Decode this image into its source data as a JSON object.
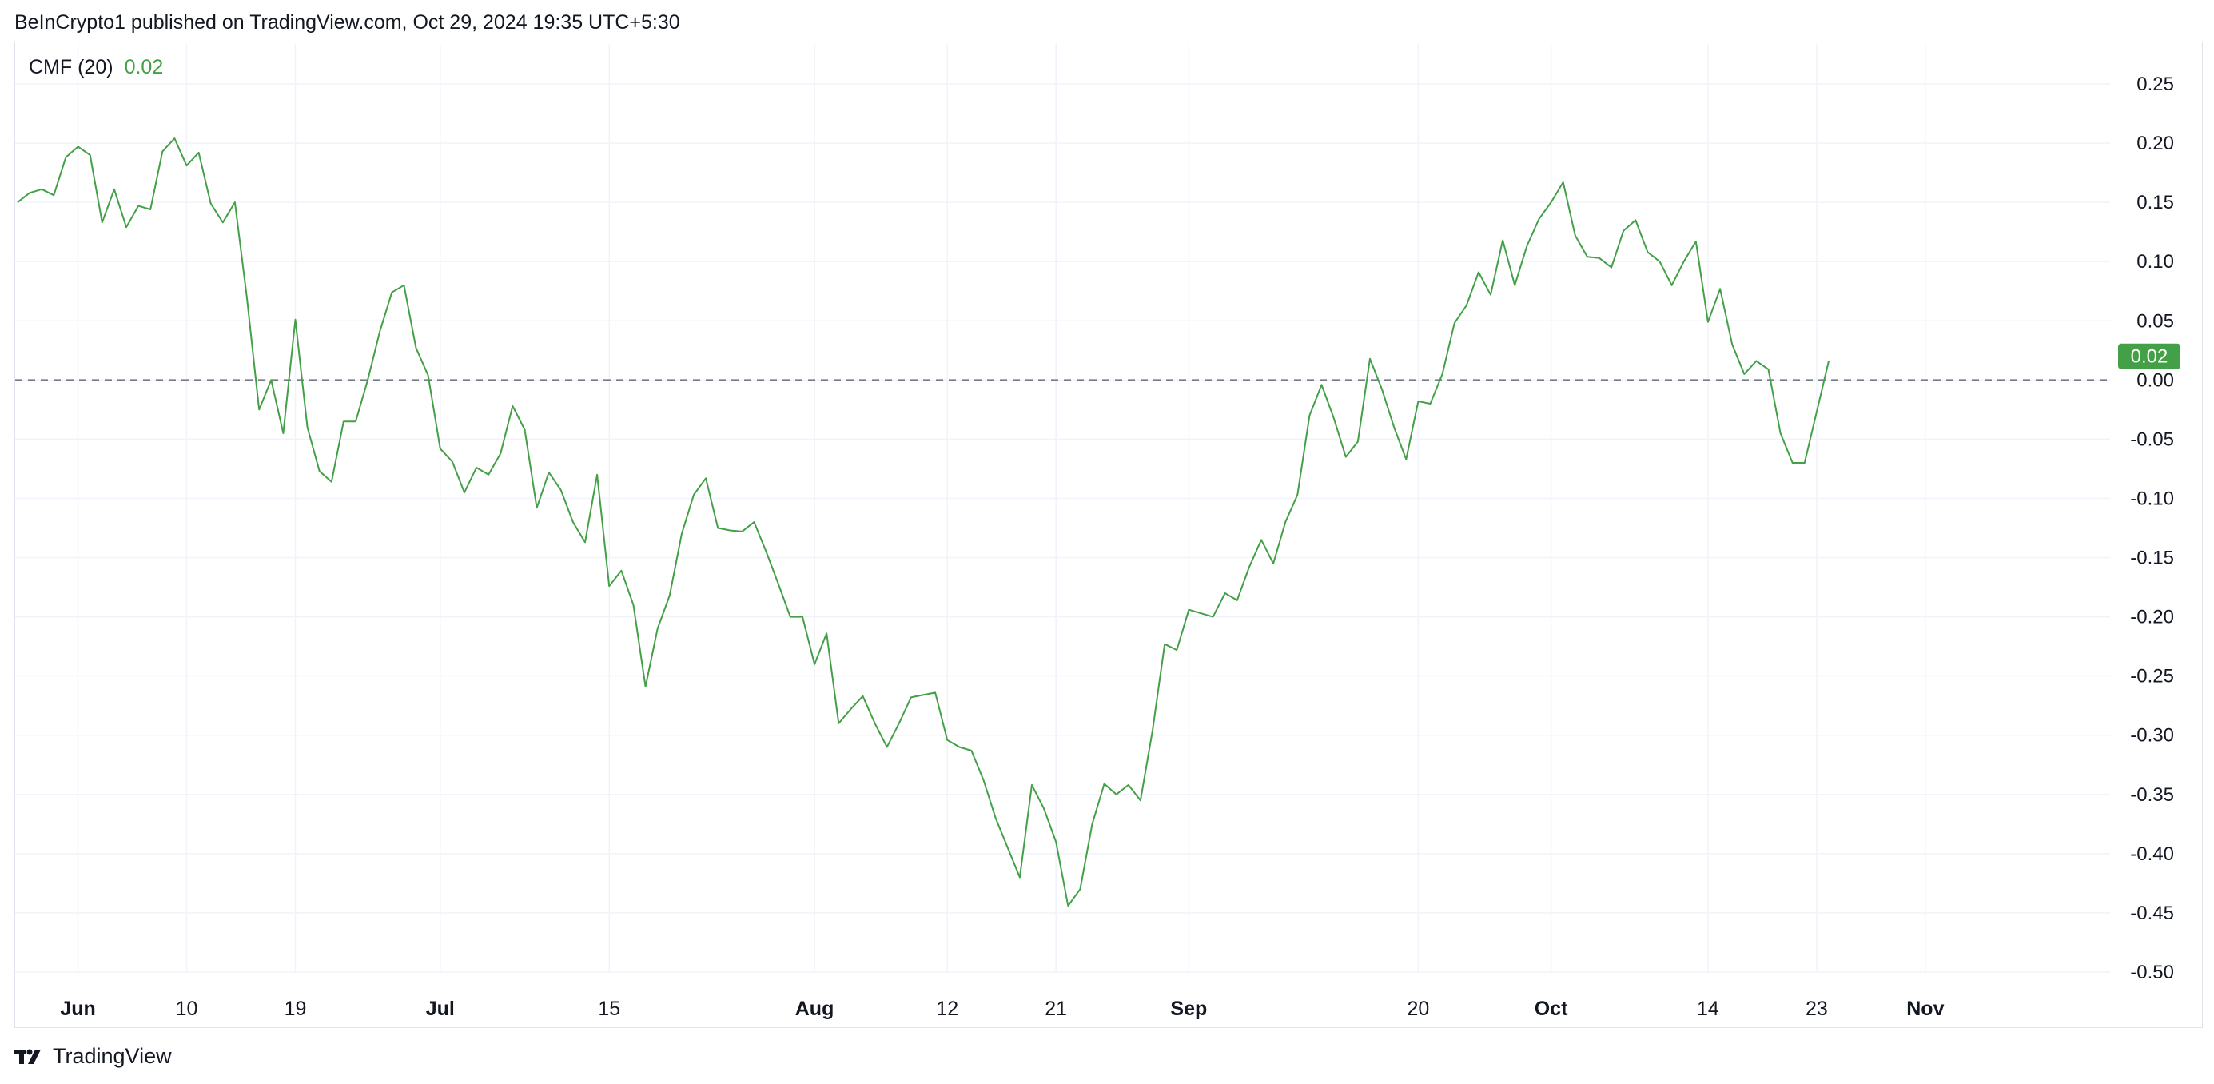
{
  "header": {
    "published_by": "BeInCrypto1 published on TradingView.com, Oct 29, 2024 19:35 UTC+5:30"
  },
  "legend": {
    "indicator": "CMF (20)",
    "value": "0.02"
  },
  "footer": {
    "brand": "TradingView"
  },
  "colors": {
    "series": "#43a047",
    "badge": "#43a047",
    "grid": "#f0f3fa",
    "zero_line": "#787b86"
  },
  "chart_data": {
    "type": "line",
    "title": "",
    "xlabel": "",
    "ylabel": "",
    "ylim": [
      -0.5,
      0.25
    ],
    "y_ticks": [
      "0.25",
      "0.20",
      "0.15",
      "0.10",
      "0.05",
      "0.00",
      "-0.05",
      "-0.10",
      "-0.15",
      "-0.20",
      "-0.25",
      "-0.30",
      "-0.35",
      "-0.40",
      "-0.45",
      "-0.50"
    ],
    "x_ticks": [
      {
        "label": "Jun",
        "bold": true,
        "day": 0
      },
      {
        "label": "10",
        "bold": false,
        "day": 9
      },
      {
        "label": "19",
        "bold": false,
        "day": 18
      },
      {
        "label": "Jul",
        "bold": true,
        "day": 30
      },
      {
        "label": "15",
        "bold": false,
        "day": 44
      },
      {
        "label": "Aug",
        "bold": true,
        "day": 61
      },
      {
        "label": "12",
        "bold": false,
        "day": 72
      },
      {
        "label": "21",
        "bold": false,
        "day": 81
      },
      {
        "label": "Sep",
        "bold": true,
        "day": 92
      },
      {
        "label": "20",
        "bold": false,
        "day": 111
      },
      {
        "label": "Oct",
        "bold": true,
        "day": 122
      },
      {
        "label": "14",
        "bold": false,
        "day": 135
      },
      {
        "label": "23",
        "bold": false,
        "day": 144
      },
      {
        "label": "Nov",
        "bold": true,
        "day": 153
      }
    ],
    "x_domain_days": [
      -5.2,
      168.3
    ],
    "last_value_label": "0.02",
    "zero_line": true,
    "series": [
      {
        "points": [
          [
            -5,
            0.15
          ],
          [
            -4,
            0.158
          ],
          [
            -3,
            0.161
          ],
          [
            -2,
            0.156
          ],
          [
            -1,
            0.188
          ],
          [
            0,
            0.197
          ],
          [
            1,
            0.19
          ],
          [
            2,
            0.133
          ],
          [
            3,
            0.161
          ],
          [
            4,
            0.129
          ],
          [
            5,
            0.147
          ],
          [
            6,
            0.144
          ],
          [
            7,
            0.193
          ],
          [
            8,
            0.204
          ],
          [
            9,
            0.181
          ],
          [
            10,
            0.192
          ],
          [
            11,
            0.149
          ],
          [
            12,
            0.133
          ],
          [
            13,
            0.15
          ],
          [
            14,
            0.069
          ],
          [
            15,
            -0.025
          ],
          [
            16,
            0.0
          ],
          [
            17,
            -0.045
          ],
          [
            18,
            0.051
          ],
          [
            19,
            -0.04
          ],
          [
            20,
            -0.077
          ],
          [
            21,
            -0.086
          ],
          [
            22,
            -0.035
          ],
          [
            23,
            -0.035
          ],
          [
            24,
            0.0
          ],
          [
            25,
            0.041
          ],
          [
            26,
            0.074
          ],
          [
            27,
            0.08
          ],
          [
            28,
            0.027
          ],
          [
            29,
            0.004
          ],
          [
            30,
            -0.058
          ],
          [
            31,
            -0.069
          ],
          [
            32,
            -0.095
          ],
          [
            33,
            -0.074
          ],
          [
            34,
            -0.08
          ],
          [
            35,
            -0.062
          ],
          [
            36,
            -0.022
          ],
          [
            37,
            -0.042
          ],
          [
            38,
            -0.108
          ],
          [
            39,
            -0.078
          ],
          [
            40,
            -0.093
          ],
          [
            41,
            -0.12
          ],
          [
            42,
            -0.137
          ],
          [
            43,
            -0.08
          ],
          [
            44,
            -0.174
          ],
          [
            45,
            -0.161
          ],
          [
            46,
            -0.19
          ],
          [
            47,
            -0.259
          ],
          [
            48,
            -0.21
          ],
          [
            49,
            -0.182
          ],
          [
            50,
            -0.13
          ],
          [
            51,
            -0.097
          ],
          [
            52,
            -0.083
          ],
          [
            53,
            -0.125
          ],
          [
            54,
            -0.127
          ],
          [
            55,
            -0.128
          ],
          [
            56,
            -0.12
          ],
          [
            57,
            -0.145
          ],
          [
            58,
            -0.172
          ],
          [
            59,
            -0.2
          ],
          [
            60,
            -0.2
          ],
          [
            61,
            -0.24
          ],
          [
            62,
            -0.214
          ],
          [
            63,
            -0.29
          ],
          [
            64,
            -0.278
          ],
          [
            65,
            -0.267
          ],
          [
            66,
            -0.29
          ],
          [
            67,
            -0.31
          ],
          [
            68,
            -0.29
          ],
          [
            69,
            -0.268
          ],
          [
            70,
            -0.266
          ],
          [
            71,
            -0.264
          ],
          [
            72,
            -0.304
          ],
          [
            73,
            -0.31
          ],
          [
            74,
            -0.313
          ],
          [
            75,
            -0.338
          ],
          [
            76,
            -0.37
          ],
          [
            77,
            -0.395
          ],
          [
            78,
            -0.42
          ],
          [
            79,
            -0.342
          ],
          [
            80,
            -0.362
          ],
          [
            81,
            -0.39
          ],
          [
            82,
            -0.444
          ],
          [
            83,
            -0.43
          ],
          [
            84,
            -0.375
          ],
          [
            85,
            -0.341
          ],
          [
            86,
            -0.35
          ],
          [
            87,
            -0.342
          ],
          [
            88,
            -0.355
          ],
          [
            89,
            -0.296
          ],
          [
            90,
            -0.223
          ],
          [
            91,
            -0.228
          ],
          [
            92,
            -0.194
          ],
          [
            93,
            -0.197
          ],
          [
            94,
            -0.2
          ],
          [
            95,
            -0.18
          ],
          [
            96,
            -0.186
          ],
          [
            97,
            -0.158
          ],
          [
            98,
            -0.135
          ],
          [
            99,
            -0.155
          ],
          [
            100,
            -0.12
          ],
          [
            101,
            -0.097
          ],
          [
            102,
            -0.03
          ],
          [
            103,
            -0.004
          ],
          [
            104,
            -0.032
          ],
          [
            105,
            -0.065
          ],
          [
            106,
            -0.052
          ],
          [
            107,
            0.018
          ],
          [
            108,
            -0.008
          ],
          [
            109,
            -0.04
          ],
          [
            110,
            -0.067
          ],
          [
            111,
            -0.018
          ],
          [
            112,
            -0.02
          ],
          [
            113,
            0.005
          ],
          [
            114,
            0.048
          ],
          [
            115,
            0.063
          ],
          [
            116,
            0.091
          ],
          [
            117,
            0.072
          ],
          [
            118,
            0.118
          ],
          [
            119,
            0.08
          ],
          [
            120,
            0.113
          ],
          [
            121,
            0.136
          ],
          [
            122,
            0.15
          ],
          [
            123,
            0.167
          ],
          [
            124,
            0.122
          ],
          [
            125,
            0.104
          ],
          [
            126,
            0.103
          ],
          [
            127,
            0.095
          ],
          [
            128,
            0.126
          ],
          [
            129,
            0.135
          ],
          [
            130,
            0.108
          ],
          [
            131,
            0.1
          ],
          [
            132,
            0.08
          ],
          [
            133,
            0.1
          ],
          [
            134,
            0.117
          ],
          [
            135,
            0.049
          ],
          [
            136,
            0.077
          ],
          [
            137,
            0.03
          ],
          [
            138,
            0.005
          ],
          [
            139,
            0.016
          ],
          [
            140,
            0.009
          ],
          [
            141,
            -0.045
          ],
          [
            142,
            -0.07
          ],
          [
            143,
            -0.07
          ],
          [
            144,
            -0.027
          ],
          [
            145,
            0.016
          ]
        ]
      }
    ]
  }
}
